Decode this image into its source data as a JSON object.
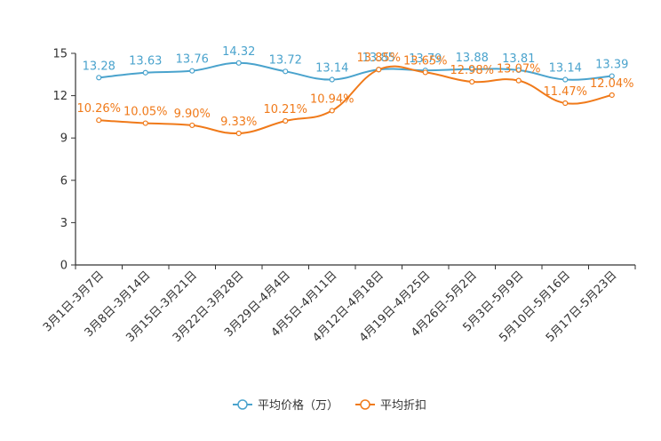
{
  "chart_data": {
    "type": "line",
    "categories": [
      "3月1日-3月7日",
      "3月8日-3月14日",
      "3月15日-3月21日",
      "3月22日-3月28日",
      "3月29日-4月4日",
      "4月5日-4月11日",
      "4月12日-4月18日",
      "4月19日-4月25日",
      "4月26日-5月2日",
      "5月3日-5月9日",
      "5月10日-5月16日",
      "5月17日-5月23日"
    ],
    "ylim": [
      0,
      15
    ],
    "yticks": [
      "0",
      "3",
      "6",
      "9",
      "12",
      "15"
    ],
    "grid": false,
    "legend_position": "bottom",
    "series": [
      {
        "name": "平均价格（万）",
        "color": "#4aa3cd",
        "values": [
          13.28,
          13.63,
          13.76,
          14.32,
          13.72,
          13.14,
          13.85,
          13.79,
          13.88,
          13.81,
          13.14,
          13.39
        ],
        "labels": [
          "13.28",
          "13.63",
          "13.76",
          "14.32",
          "13.72",
          "13.14",
          "13.85",
          "13.79",
          "13.88",
          "13.81",
          "13.14",
          "13.39"
        ]
      },
      {
        "name": "平均折扣",
        "color": "#f07a1a",
        "values": [
          10.26,
          10.05,
          9.9,
          9.33,
          10.21,
          10.94,
          13.85,
          13.65,
          12.98,
          13.07,
          11.47,
          12.04
        ],
        "labels": [
          "10.26%",
          "10.05%",
          "9.90%",
          "9.33%",
          "10.21%",
          "10.94%",
          "13.85%",
          "13.65%",
          "12.98%",
          "13.07%",
          "11.47%",
          "12.04%"
        ]
      }
    ]
  }
}
